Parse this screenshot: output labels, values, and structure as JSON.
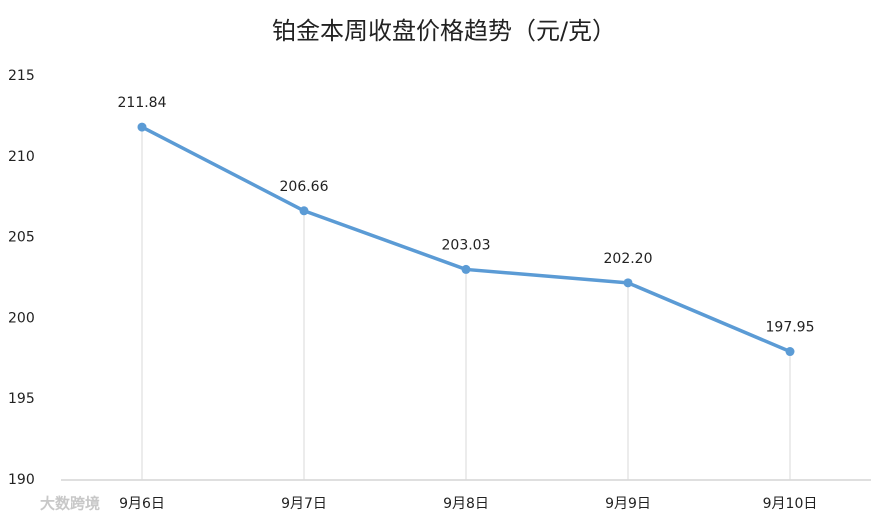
{
  "chart_data": {
    "type": "line",
    "title": "铂金本周收盘价格趋势（元/克）",
    "categories": [
      "9月6日",
      "9月7日",
      "9月8日",
      "9月9日",
      "9月10日"
    ],
    "values": [
      211.84,
      206.66,
      203.03,
      202.2,
      197.95
    ],
    "value_labels": [
      "211.84",
      "206.66",
      "203.03",
      "202.20",
      "197.95"
    ],
    "color": "#5b9bd5",
    "ylim": [
      190,
      215
    ],
    "yticks": [
      190,
      195,
      200,
      205,
      210,
      215
    ],
    "drop_lines": true,
    "watermark": "大数跨境"
  }
}
